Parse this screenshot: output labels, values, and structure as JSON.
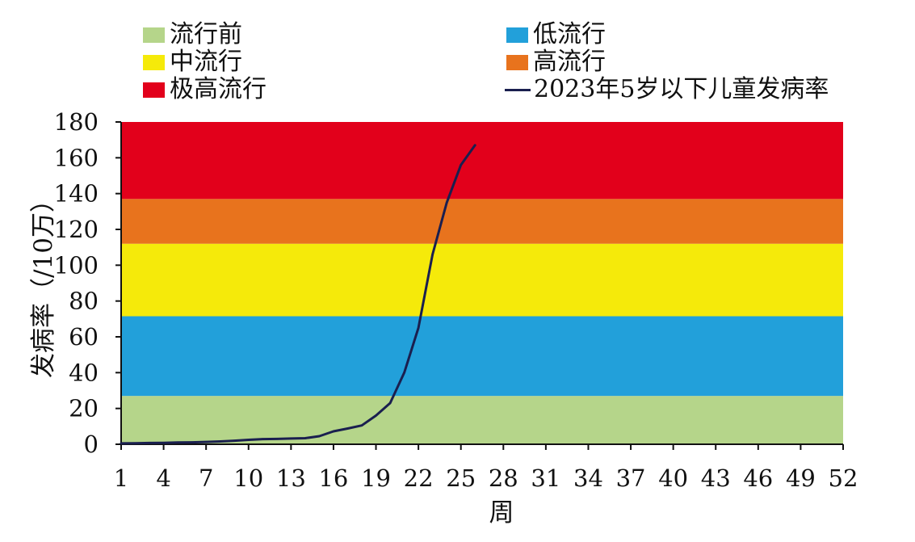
{
  "chart_data": {
    "type": "line",
    "title": "",
    "xlabel": "周",
    "ylabel": "发病率（/10万）",
    "xlim": [
      1,
      52
    ],
    "ylim": [
      0,
      180
    ],
    "x_ticks": [
      "1",
      "4",
      "7",
      "10",
      "13",
      "16",
      "19",
      "22",
      "25",
      "28",
      "31",
      "34",
      "37",
      "40",
      "43",
      "46",
      "49",
      "52"
    ],
    "y_ticks": [
      "0",
      "20",
      "40",
      "60",
      "80",
      "100",
      "120",
      "140",
      "160",
      "180"
    ],
    "bands": [
      {
        "name": "流行前",
        "from": 0,
        "to": 27,
        "color": "#b5d58a"
      },
      {
        "name": "低流行",
        "from": 27,
        "to": 71.5,
        "color": "#22a0da"
      },
      {
        "name": "中流行",
        "from": 71.5,
        "to": 112,
        "color": "#f5ea0a"
      },
      {
        "name": "高流行",
        "from": 112,
        "to": 137,
        "color": "#e8731d"
      },
      {
        "name": "极高流行",
        "from": 137,
        "to": 180,
        "color": "#e2001b"
      }
    ],
    "series": [
      {
        "name": "2023年5岁以下儿童发病率",
        "color": "#1a1f4f",
        "x": [
          1,
          2,
          3,
          4,
          5,
          6,
          7,
          8,
          9,
          10,
          11,
          12,
          13,
          14,
          15,
          16,
          17,
          18,
          19,
          20,
          21,
          22,
          23,
          24,
          25,
          26
        ],
        "y": [
          0.5,
          0.6,
          0.7,
          0.8,
          1.0,
          1.1,
          1.3,
          1.6,
          2.0,
          2.5,
          2.9,
          3.0,
          3.2,
          3.4,
          4.5,
          7.2,
          8.8,
          10.5,
          16,
          23,
          40,
          65,
          106,
          135,
          156,
          167
        ]
      }
    ],
    "legend": {
      "position": "top",
      "items": [
        {
          "label": "流行前",
          "kind": "swatch",
          "color": "#b5d58a"
        },
        {
          "label": "低流行",
          "kind": "swatch",
          "color": "#22a0da"
        },
        {
          "label": "中流行",
          "kind": "swatch",
          "color": "#f5ea0a"
        },
        {
          "label": "高流行",
          "kind": "swatch",
          "color": "#e8731d"
        },
        {
          "label": "极高流行",
          "kind": "swatch",
          "color": "#e2001b"
        },
        {
          "label": "2023年5岁以下儿童发病率",
          "kind": "line",
          "color": "#1a1f4f"
        }
      ]
    },
    "grid": false
  }
}
